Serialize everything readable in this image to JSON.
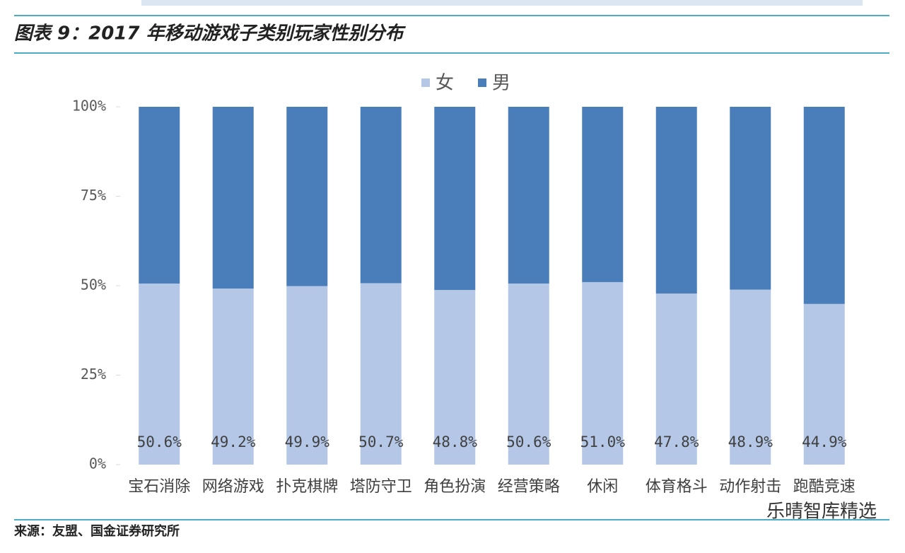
{
  "chart_data": {
    "type": "stacked-bar",
    "title": "图表 9：2017 年移动游戏子类别玩家性别分布",
    "categories": [
      "宝石消除",
      "网络游戏",
      "扑克棋牌",
      "塔防守卫",
      "角色扮演",
      "经营策略",
      "休闲",
      "体育格斗",
      "动作射击",
      "跑酷竞速"
    ],
    "series": [
      {
        "name": "女",
        "color": "#b4c7e7",
        "values": [
          50.6,
          49.2,
          49.9,
          50.7,
          48.8,
          50.6,
          51.0,
          47.8,
          48.9,
          44.9
        ],
        "value_labels": [
          "50.6%",
          "49.2%",
          "49.9%",
          "50.7%",
          "48.8%",
          "50.6%",
          "51.0%",
          "47.8%",
          "48.9%",
          "44.9%"
        ]
      },
      {
        "name": "男",
        "color": "#4a7ebb",
        "values": [
          49.4,
          50.8,
          50.1,
          49.3,
          51.2,
          49.4,
          49.0,
          52.2,
          51.1,
          55.1
        ]
      }
    ],
    "ylim": [
      0,
      100
    ],
    "yticks": [
      {
        "value": 0,
        "label": "0%"
      },
      {
        "value": 25,
        "label": "25%"
      },
      {
        "value": 50,
        "label": "50%"
      },
      {
        "value": 75,
        "label": "75%"
      },
      {
        "value": 100,
        "label": "100%"
      }
    ],
    "source": "来源：友盟、国金证券研究所",
    "watermark": "乐晴智库精选"
  }
}
